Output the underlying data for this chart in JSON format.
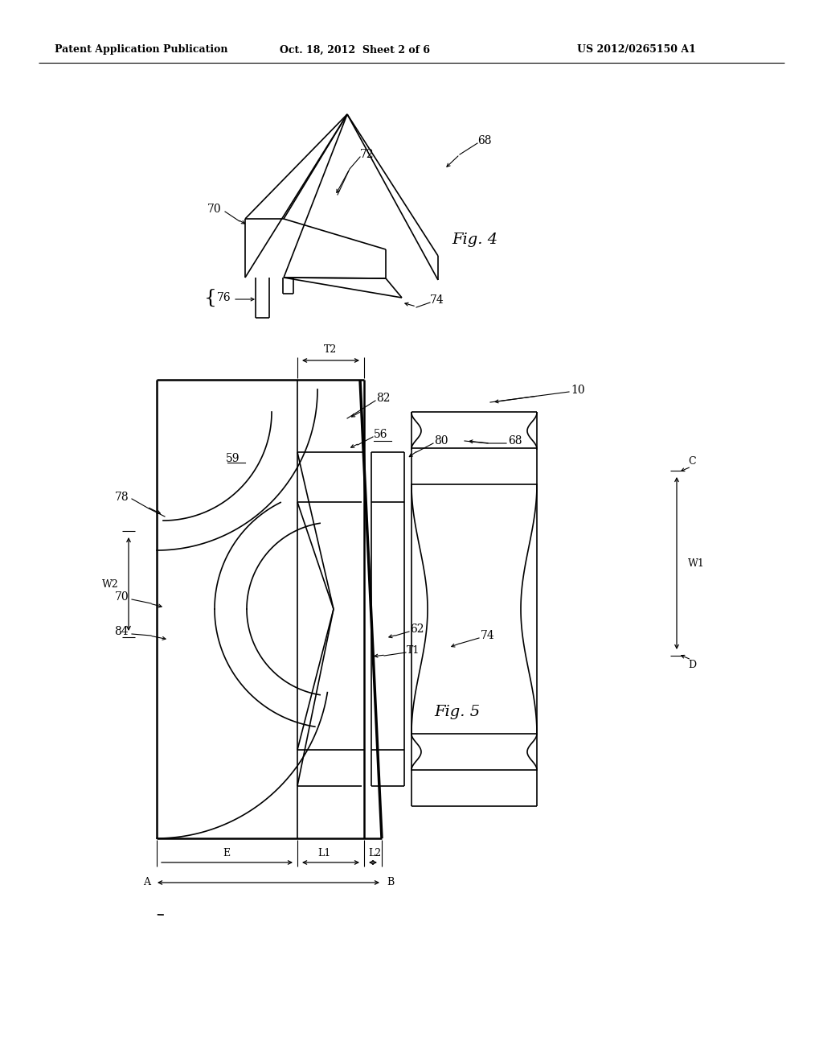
{
  "bg_color": "#ffffff",
  "lc": "#000000",
  "header_left": "Patent Application Publication",
  "header_mid": "Oct. 18, 2012  Sheet 2 of 6",
  "header_right": "US 2012/0265150 A1",
  "fig4_label": "Fig. 4",
  "fig5_label": "Fig. 5"
}
